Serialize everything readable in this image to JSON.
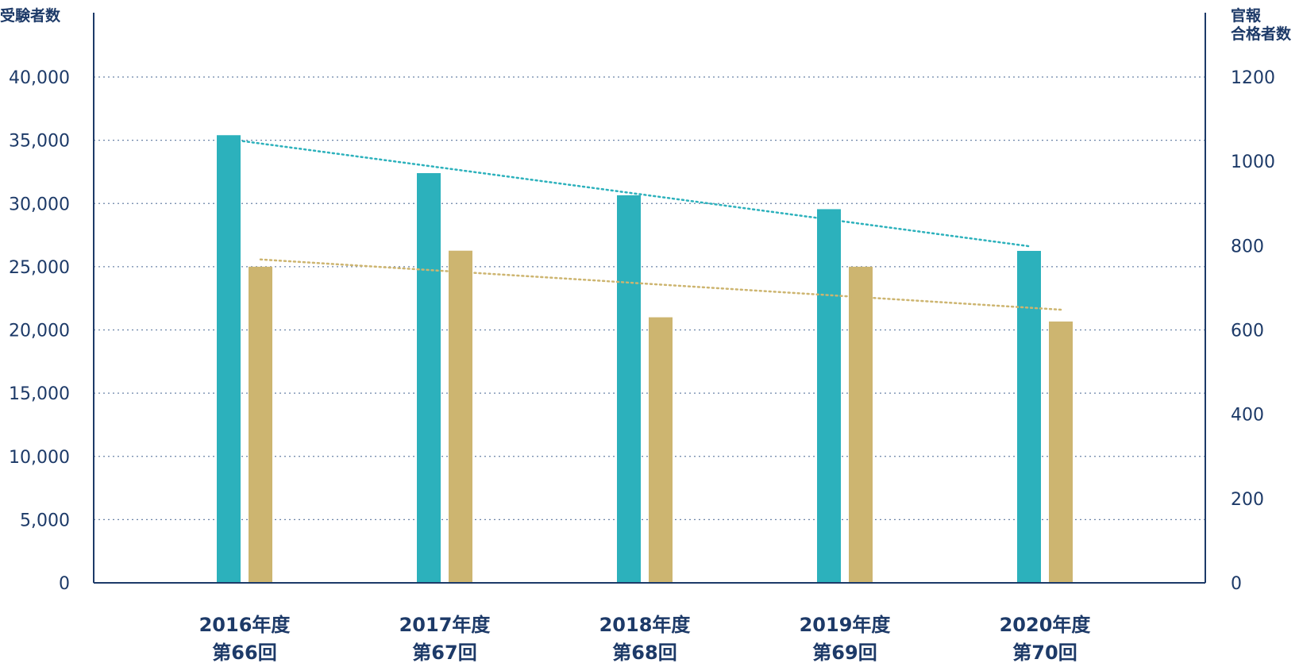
{
  "chart_data": {
    "type": "bar",
    "categories": [
      {
        "line1": "2016年度",
        "line2": "第66回"
      },
      {
        "line1": "2017年度",
        "line2": "第67回"
      },
      {
        "line1": "2018年度",
        "line2": "第68回"
      },
      {
        "line1": "2019年度",
        "line2": "第69回"
      },
      {
        "line1": "2020年度",
        "line2": "第70回"
      }
    ],
    "left_axis": {
      "title": [
        "受験者数"
      ],
      "ylim": [
        0,
        40000
      ],
      "ticks": [
        0,
        5000,
        10000,
        15000,
        20000,
        25000,
        30000,
        35000,
        40000
      ],
      "tick_labels": [
        "0",
        "5,000",
        "10,000",
        "15,000",
        "20,000",
        "25,000",
        "30,000",
        "35,000",
        "40,000"
      ]
    },
    "right_axis": {
      "title": [
        "官報",
        "合格者数"
      ],
      "ylim": [
        0,
        1200
      ],
      "ticks": [
        0,
        200,
        400,
        600,
        800,
        1000,
        1200
      ],
      "tick_labels": [
        "0",
        "200",
        "400",
        "600",
        "800",
        "1000",
        "1200"
      ]
    },
    "series": [
      {
        "axis": "left",
        "color": "#2cb1bc",
        "values": [
          35400,
          32400,
          30650,
          29550,
          26250
        ],
        "trendline": true
      },
      {
        "axis": "right",
        "color": "#cdb570",
        "values": [
          750,
          788,
          630,
          750,
          620
        ],
        "trendline": true
      }
    ],
    "grid": true,
    "grid_style": "dotted"
  }
}
